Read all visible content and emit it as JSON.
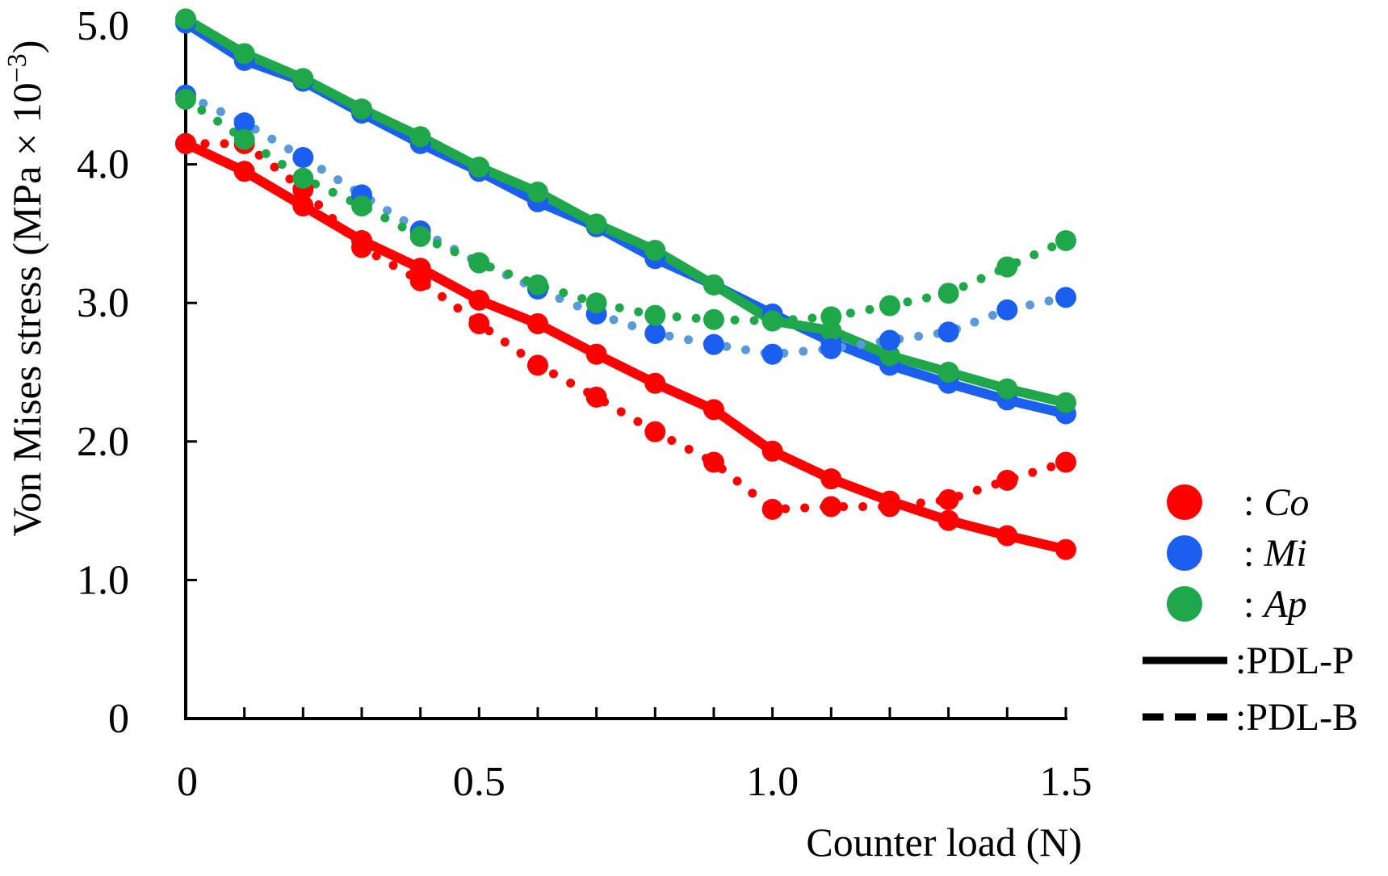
{
  "chart_data": {
    "type": "line",
    "xlabel": "Counter load (N)",
    "ylabel": "Von Mises stress (MPa × 10",
    "ylabel_exponent": "−3",
    "ylabel_close": ")",
    "xlim": [
      0,
      1.5
    ],
    "ylim": [
      0,
      5.0
    ],
    "x_ticks": [
      {
        "value": 0,
        "label": "0"
      },
      {
        "value": 0.5,
        "label": "0.5"
      },
      {
        "value": 1.0,
        "label": "1.0"
      },
      {
        "value": 1.5,
        "label": "1.5"
      }
    ],
    "y_ticks": [
      {
        "value": 0,
        "label": "0"
      },
      {
        "value": 1.0,
        "label": "1.0"
      },
      {
        "value": 2.0,
        "label": "2.0"
      },
      {
        "value": 3.0,
        "label": "3.0"
      },
      {
        "value": 4.0,
        "label": "4.0"
      },
      {
        "value": 5.0,
        "label": "5.0"
      }
    ],
    "x": [
      0,
      0.1,
      0.2,
      0.3,
      0.4,
      0.5,
      0.6,
      0.7,
      0.8,
      0.9,
      1.0,
      1.1,
      1.2,
      1.3,
      1.4,
      1.5
    ],
    "grid": false,
    "legend_position": "right",
    "series": [
      {
        "name": "Co",
        "line": "PDL-P",
        "color": "#ff0000",
        "values": [
          4.15,
          3.95,
          3.7,
          3.45,
          3.25,
          3.02,
          2.85,
          2.63,
          2.42,
          2.23,
          1.93,
          1.73,
          1.57,
          1.43,
          1.32,
          1.22
        ]
      },
      {
        "name": "Mi",
        "line": "PDL-P",
        "color": "#1a5ff0",
        "values": [
          5.02,
          4.75,
          4.6,
          4.37,
          4.15,
          3.95,
          3.73,
          3.55,
          3.32,
          3.13,
          2.92,
          2.72,
          2.55,
          2.42,
          2.3,
          2.2
        ]
      },
      {
        "name": "Ap",
        "line": "PDL-P",
        "color": "#1fa84a",
        "values": [
          5.05,
          4.8,
          4.62,
          4.4,
          4.2,
          3.98,
          3.8,
          3.57,
          3.38,
          3.13,
          2.87,
          2.8,
          2.62,
          2.5,
          2.38,
          2.28
        ]
      },
      {
        "name": "Co",
        "line": "PDL-B",
        "color": "#ff0000",
        "values": [
          4.15,
          4.15,
          3.82,
          3.4,
          3.16,
          2.85,
          2.55,
          2.32,
          2.07,
          1.85,
          1.51,
          1.53,
          1.53,
          1.58,
          1.72,
          1.85
        ]
      },
      {
        "name": "Mi",
        "line": "PDL-B",
        "color": "#1a5ff0",
        "line_color": "#5a9ad8",
        "values": [
          4.5,
          4.3,
          4.05,
          3.78,
          3.52,
          3.29,
          3.1,
          2.92,
          2.78,
          2.7,
          2.63,
          2.67,
          2.73,
          2.79,
          2.95,
          3.04
        ]
      },
      {
        "name": "Ap",
        "line": "PDL-B",
        "color": "#1fa84a",
        "values": [
          4.47,
          4.18,
          3.9,
          3.7,
          3.48,
          3.29,
          3.13,
          3.0,
          2.91,
          2.88,
          2.87,
          2.9,
          2.98,
          3.07,
          3.26,
          3.45
        ]
      }
    ],
    "legend": {
      "markers": [
        {
          "name": "Co",
          "color": "#ff0000",
          "label": ": ",
          "italic_label": "Co"
        },
        {
          "name": "Mi",
          "color": "#1a5ff0",
          "label": ": ",
          "italic_label": "Mi"
        },
        {
          "name": "Ap",
          "color": "#1fa84a",
          "label": ": ",
          "italic_label": "Ap"
        }
      ],
      "lines": [
        {
          "style": "solid",
          "label": ":PDL-P"
        },
        {
          "style": "dashed",
          "label": ":PDL-B"
        }
      ]
    }
  }
}
